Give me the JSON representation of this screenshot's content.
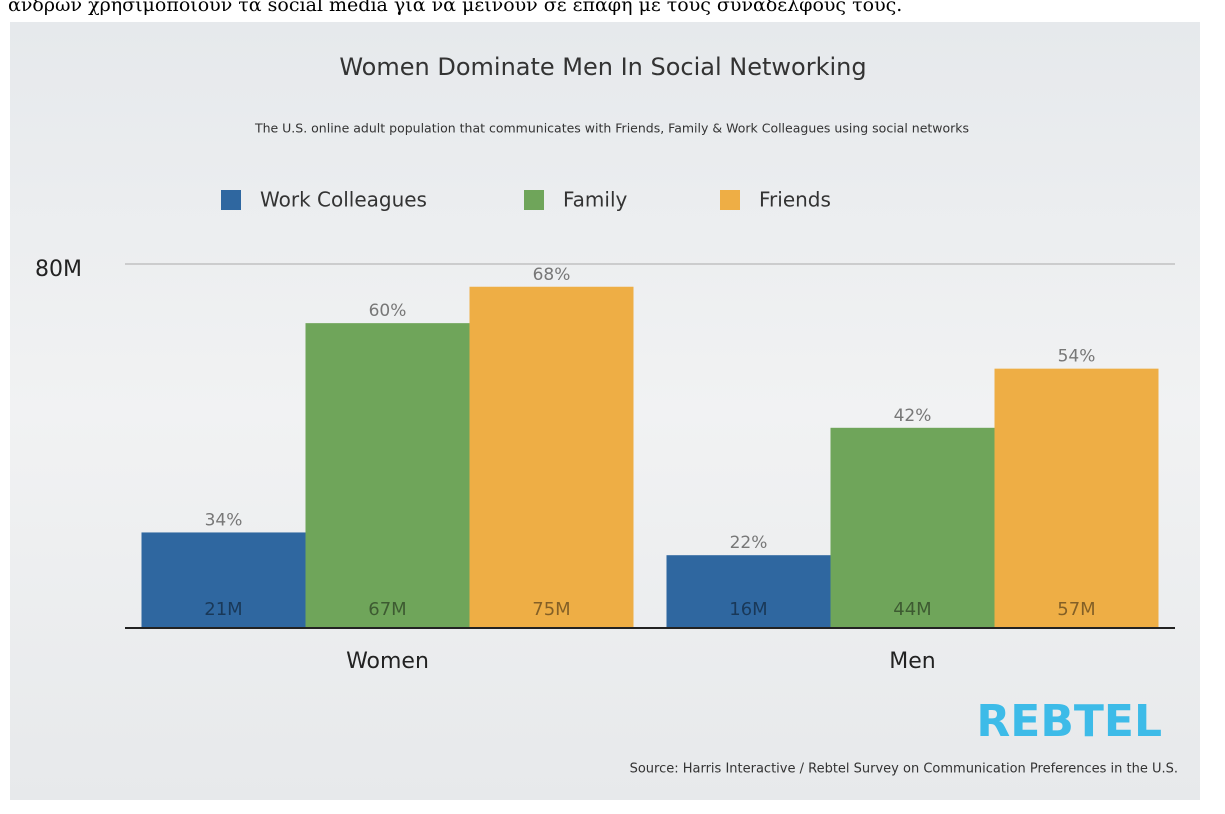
{
  "caption": "ανδρών χρησιμοποιούν τα social media για να μείνουν σε επαφή με τους συναδέλφους τους.",
  "chart_data": {
    "type": "bar",
    "title": "Women Dominate Men In Social Networking",
    "subtitle": "The U.S. online adult population that communicates with Friends, Family & Work Colleagues using social networks",
    "categories": [
      "Women",
      "Men"
    ],
    "series": [
      {
        "name": "Work Colleagues",
        "color": "#2f67a0",
        "values": [
          21,
          16
        ],
        "value_labels": [
          "21M",
          "16M"
        ],
        "share_labels": [
          "34%",
          "22%"
        ]
      },
      {
        "name": "Family",
        "color": "#6fa55a",
        "values": [
          67,
          44
        ],
        "value_labels": [
          "67M",
          "44M"
        ],
        "share_labels": [
          "60%",
          "42%"
        ]
      },
      {
        "name": "Friends",
        "color": "#eeae45",
        "values": [
          75,
          57
        ],
        "value_labels": [
          "75M",
          "57M"
        ],
        "share_labels": [
          "68%",
          "54%"
        ]
      }
    ],
    "ylim": [
      0,
      80
    ],
    "yticks": [
      {
        "value": 80,
        "label": "80M"
      }
    ],
    "grid": true,
    "legend": "top",
    "source": "Source: Harris Interactive / Rebtel Survey on Communication Preferences in the U.S.",
    "logo": "REBTEL"
  }
}
